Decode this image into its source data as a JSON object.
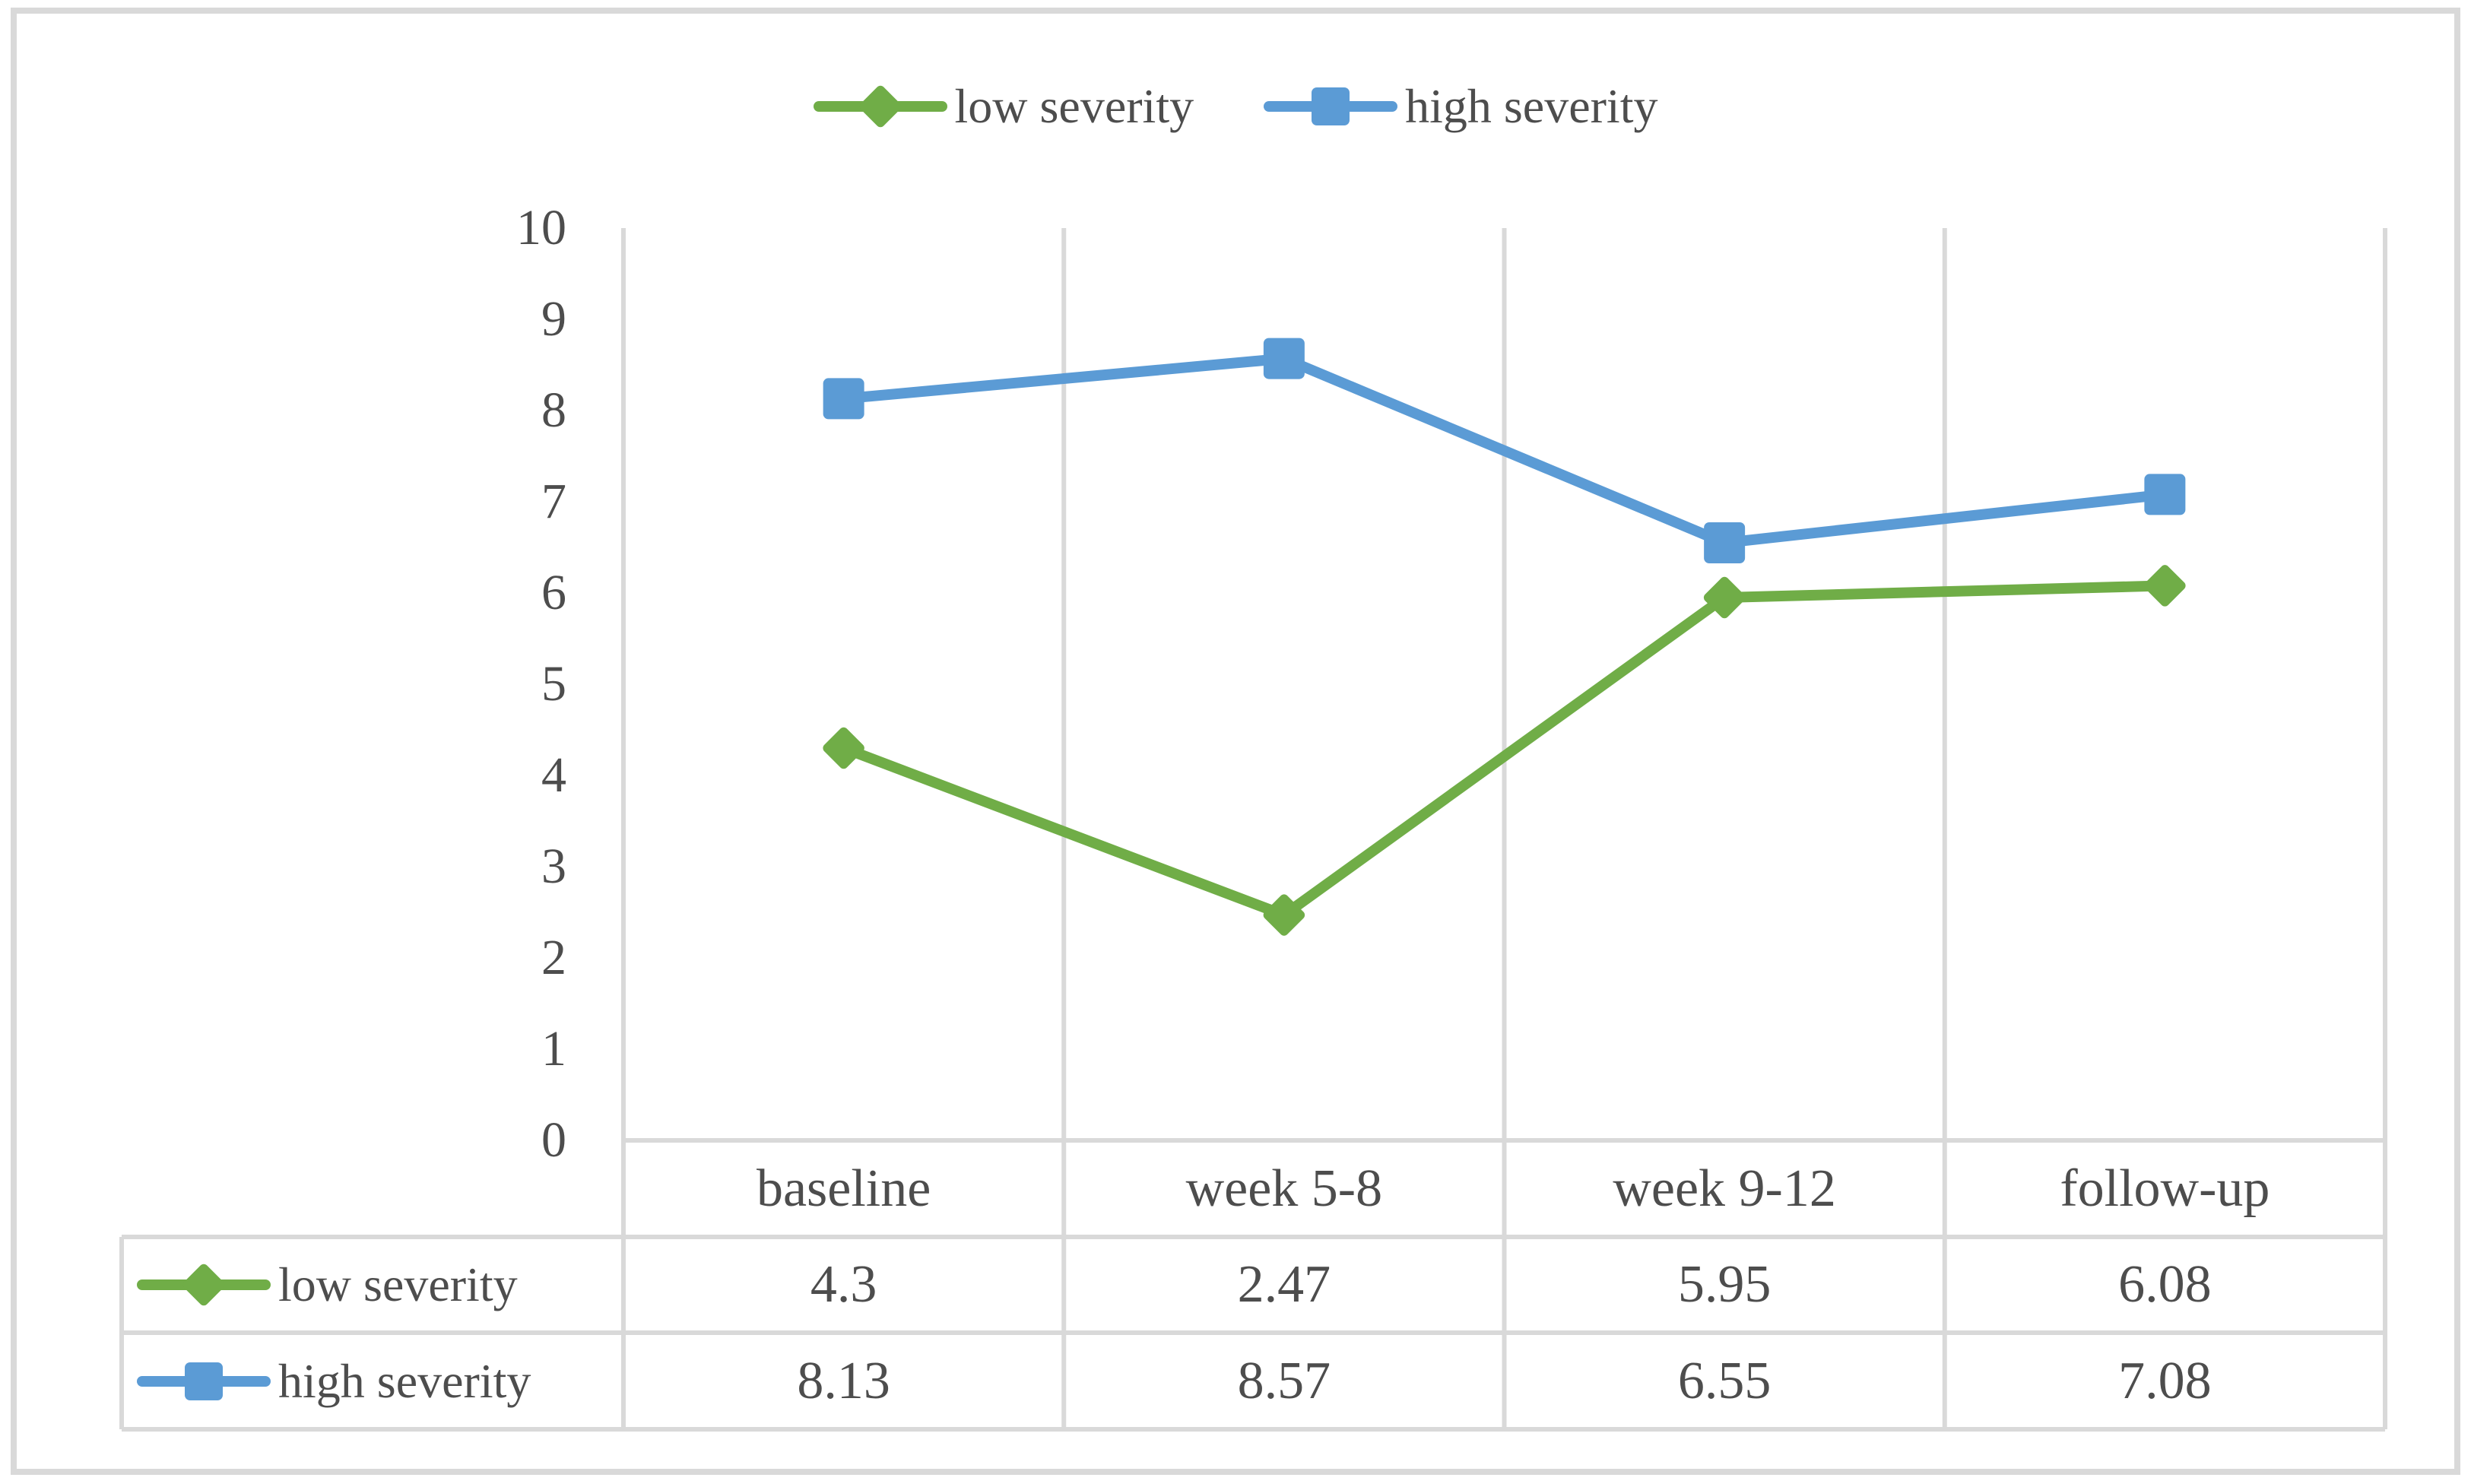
{
  "chart_data": {
    "type": "line",
    "title": "",
    "categories": [
      "baseline",
      "week 5-8",
      "week 9-12",
      "follow-up"
    ],
    "series": [
      {
        "name": "low severity",
        "values": [
          4.3,
          2.47,
          5.95,
          6.08
        ],
        "color": "#70AD47",
        "marker": "diamond"
      },
      {
        "name": "high severity",
        "values": [
          8.13,
          8.57,
          6.55,
          7.08
        ],
        "color": "#5B9BD5",
        "marker": "square"
      }
    ],
    "ylim": [
      0,
      10
    ],
    "yticks": [
      0,
      1,
      2,
      3,
      4,
      5,
      6,
      7,
      8,
      9,
      10
    ],
    "xlabel": "",
    "ylabel": "",
    "grid": "vertical-category-lines-only",
    "legend_position": "top-center",
    "data_table_shown": true
  },
  "colors": {
    "grid": "#D9D9D9",
    "frame": "#D9D9D9",
    "text": "#4D4D4D",
    "background": "#FFFFFF",
    "series_green": "#70AD47",
    "series_blue": "#5B9BD5"
  }
}
